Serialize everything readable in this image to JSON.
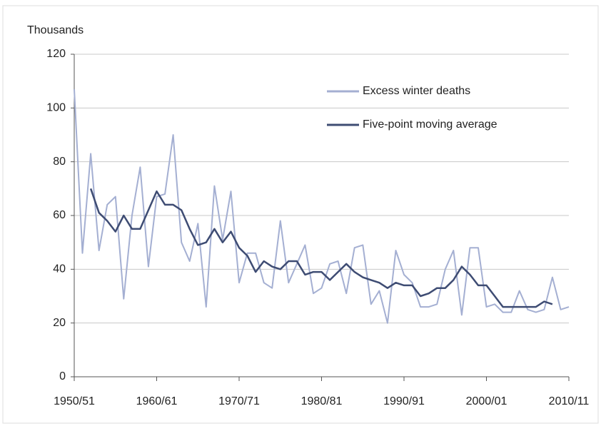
{
  "chart_data": {
    "type": "line",
    "y_label": "Thousands",
    "categories": [
      "1950/51",
      null,
      null,
      null,
      null,
      null,
      null,
      null,
      null,
      null,
      "1960/61",
      null,
      null,
      null,
      null,
      null,
      null,
      null,
      null,
      null,
      "1970/71",
      null,
      null,
      null,
      null,
      null,
      null,
      null,
      null,
      null,
      "1980/81",
      null,
      null,
      null,
      null,
      null,
      null,
      null,
      null,
      null,
      "1990/91",
      null,
      null,
      null,
      null,
      null,
      null,
      null,
      null,
      null,
      "2000/01",
      null,
      null,
      null,
      null,
      null,
      null,
      null,
      null,
      null,
      "2010/11"
    ],
    "series": [
      {
        "name": "Excess winter deaths",
        "color": "#a4afd2",
        "values": [
          107,
          46,
          83,
          47,
          64,
          67,
          29,
          60,
          78,
          41,
          67,
          68,
          90,
          50,
          43,
          57,
          26,
          71,
          51,
          69,
          35,
          46,
          46,
          35,
          33,
          58,
          35,
          42,
          49,
          31,
          33,
          42,
          43,
          31,
          48,
          49,
          27,
          32,
          20,
          47,
          38,
          35,
          26,
          26,
          27,
          40,
          47,
          23,
          48,
          48,
          26,
          27,
          24,
          24,
          32,
          25,
          24,
          25,
          37,
          25,
          26
        ]
      },
      {
        "name": "Five-point moving average",
        "color": "#3e4c73",
        "values": [
          null,
          null,
          70,
          61,
          58,
          54,
          60,
          55,
          55,
          62,
          69,
          64,
          64,
          62,
          55,
          49,
          50,
          55,
          50,
          54,
          48,
          45,
          39,
          43,
          41,
          40,
          43,
          43,
          38,
          39,
          39,
          36,
          39,
          42,
          39,
          37,
          36,
          35,
          33,
          35,
          34,
          34,
          30,
          31,
          33,
          33,
          36,
          41,
          38,
          34,
          34,
          30,
          26,
          26,
          26,
          26,
          26,
          28,
          27,
          null,
          null
        ]
      }
    ],
    "ylim": [
      0,
      120
    ],
    "yticks": [
      0,
      20,
      40,
      60,
      80,
      100,
      120
    ],
    "grid": true,
    "legend": "top-right"
  }
}
